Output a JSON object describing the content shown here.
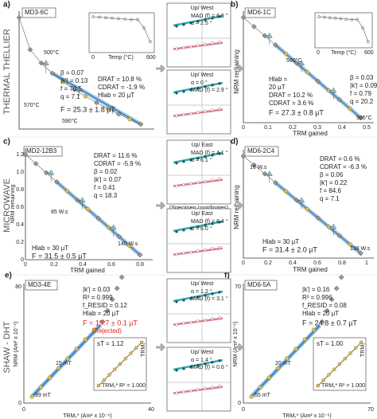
{
  "row_labels": [
    "THERMAL THELLIER",
    "MICROWAVE",
    "SHAW - DHT"
  ],
  "panels": {
    "a": {
      "label": "a)",
      "id": "MD3-6C",
      "stats": [
        "β = 0.07",
        "|k′| = 0.13",
        "f = 70.5",
        "q = 7.1"
      ],
      "checks": [
        "DRAT = 10.8 %",
        "CDRAT = -1.9 %",
        "Hlab = 20 µT"
      ],
      "result": "F = 25.3 ± 1.8 µT",
      "steps": [
        "500°C",
        "570°C",
        "590°C"
      ],
      "inset_axis": "Temp (°C)",
      "inset_ticks": [
        "0",
        "600"
      ]
    },
    "b": {
      "label": "b)",
      "id": "MD6-1C",
      "stats": [
        "β = 0.03",
        "|k′| = 0.09",
        "f = 0.79",
        "q = 20.2"
      ],
      "checks": [
        "Hlab = ",
        "20 µT",
        "DRAT = 10.2 %",
        "CDRAT = 3.6 %"
      ],
      "result": "F = 27.3 ± 0.8 µT",
      "steps": [
        "560°C",
        "585°C"
      ],
      "inset_axis": "Temp (°C)",
      "inset_ticks": [
        "0",
        "600"
      ],
      "ylabel": "NRM remaining",
      "xlabel": "TRM gained",
      "xticks": [
        "0",
        "0.1",
        "0.2",
        "0.3",
        "0.4",
        "0.5"
      ]
    },
    "c": {
      "label": "c)",
      "id": "MD2-12B3",
      "stats": [
        "DRAT = 11.6 %",
        "CDRAT = -5.9 %",
        "β = 0.02",
        "|k′| = 0.07",
        "f = 0.41",
        "q = 18.3"
      ],
      "steps": [
        "85 W.s",
        "140 W.s"
      ],
      "checks": [
        "Hlab = 30 µT"
      ],
      "result": "F = 31.5 ± 0.5 µT",
      "ylabel": "NRM remaining",
      "xlabel": "TRM gained",
      "yticks": [
        "0",
        "0.2",
        "0.4",
        "0.6",
        "0.8",
        "1.0",
        "1.2"
      ],
      "xticks": [
        "0",
        "0.2",
        "0.4",
        "0.6",
        "0.8"
      ]
    },
    "d": {
      "label": "d)",
      "id": "MD6-2C4",
      "stats": [
        "DRAT = 0.6 %",
        "CDRAT = -6.3 %",
        "β = 0.06",
        "|k′| = 0.22",
        "f = 84.6",
        "q = 7.1"
      ],
      "steps": [
        "16 W.s",
        "138 W.s"
      ],
      "checks": [
        "Hlab = 30 µT"
      ],
      "result": "F = 31.4 ± 2.0 µT",
      "ylabel": "NRM remaining",
      "xlabel": "TRM gained",
      "xticks": [
        "0",
        "0.2",
        "0.4",
        "0.6",
        "0.8",
        "1"
      ]
    },
    "e": {
      "label": "e)",
      "id": "MD3-4E",
      "stats": [
        "|k′| = 0.03",
        "R² = 0.999",
        "f_RESID = 0.12",
        "Hlab = 20 µT"
      ],
      "result": "F = 19.7 ± 0.1 µT",
      "note": "(Rejected)",
      "steps": [
        "15 mT",
        "99 mT"
      ],
      "inset": [
        "sT = 1.12",
        "R² = 1.000",
        "TRM₁",
        "TRM₁*"
      ],
      "ylabel": "NRM (Am² x 10⁻⁶)",
      "xlabel": "TRM₁* (Am² x 10⁻⁶)",
      "yticks": [
        "0",
        "80"
      ],
      "xticks": [
        "0",
        "40"
      ]
    },
    "f": {
      "label": "f)",
      "id": "MD6-5A",
      "stats": [
        "|k′| = 0.16",
        "R² = 0.996",
        "f_RESID = 0.08",
        "Hlab = 20 µT"
      ],
      "result": "F = 24.8 ± 0.7 µT",
      "steps": [
        "20 mT",
        "55 mT"
      ],
      "inset": [
        "sT = 1.00",
        "R² = 1.000",
        "TRM₁",
        "TRM₁*"
      ],
      "ylabel": "NRM (Am² x 10⁻⁶)",
      "xlabel": "TRM₁* (Am² x 10⁻⁶)",
      "yticks": [
        "0",
        "70"
      ],
      "xticks": [
        "0",
        "70"
      ]
    }
  },
  "zijderveld": [
    {
      "axis": "Up/ West",
      "lines": [
        "MAD (f) = 6.8 °",
        "α = 2.5 °"
      ]
    },
    {
      "axis": "Up/ West",
      "lines": [
        "α = 0 °",
        "MAD (f) = 2.9 °"
      ]
    },
    {
      "axis": "Up/ East",
      "lines": [
        "MAD (f) = 4.1 °",
        "α = 6.1 °"
      ],
      "note": "(Specimen coordinates)"
    },
    {
      "axis": "Up/ East",
      "lines": [
        "MAD (f) = 6.4 °",
        "α = 6.0 °"
      ]
    },
    {
      "axis": "Up/ West",
      "lines": [
        "α = 1.2 °",
        "MAD (f) = 3.1 °"
      ]
    },
    {
      "axis": "Up/ West",
      "lines": [
        "α = 1.4 °",
        "MAD (f) = 0.6 °"
      ]
    }
  ]
}
